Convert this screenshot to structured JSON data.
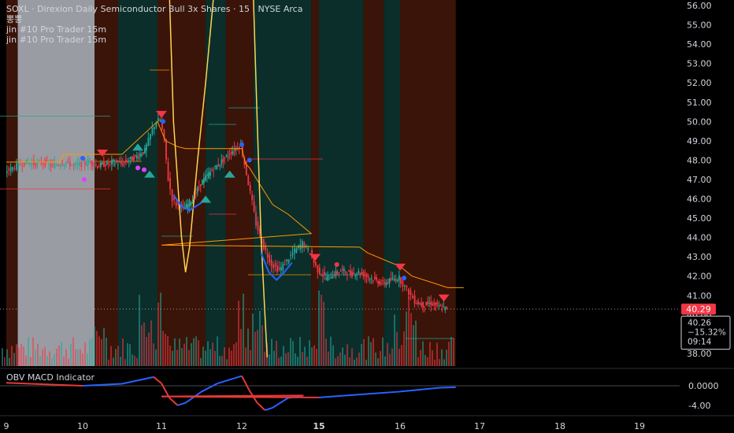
{
  "header": {
    "title": "SOXL · Direxion Daily Semiconductor Bull 3x Shares · 15 · NYSE Arca",
    "line2": "뽕뽕",
    "line3": "jin #10 Pro Trader 15m",
    "line4": "jin #10 Pro Trader 15m"
  },
  "indicator": {
    "title": "OBV MACD Indicator"
  },
  "price_tag": {
    "value": "40.29",
    "color": "#f23645"
  },
  "price_box": {
    "price": "40.26",
    "change": "−15.32%",
    "countdown": "09:14"
  },
  "colors": {
    "up": "#26a69a",
    "down": "#f23645",
    "orange": "#ff9800",
    "yellow": "#ffd54f",
    "signal_blue": "#2962ff",
    "signal_magenta": "#e040fb"
  },
  "chart_data": [
    {
      "type": "line",
      "subtype": "candlestick",
      "symbol": "SOXL",
      "interval": "15",
      "y_axis": {
        "ticks": [
          "56.00",
          "55.00",
          "54.00",
          "53.00",
          "52.00",
          "51.00",
          "50.00",
          "49.00",
          "48.00",
          "47.00",
          "46.00",
          "45.00",
          "44.00",
          "43.00",
          "42.00",
          "41.00",
          "40.00",
          "39.00",
          "38.00"
        ],
        "range": [
          37.6,
          56.2
        ]
      },
      "x_axis": {
        "ticks": [
          "9",
          "10",
          "11",
          "12",
          "15",
          "16",
          "17",
          "18",
          "19"
        ]
      },
      "close_path": [
        [
          9.0,
          47.4
        ],
        [
          9.1,
          47.6
        ],
        [
          9.2,
          47.8
        ],
        [
          9.3,
          47.9
        ],
        [
          9.4,
          47.8
        ],
        [
          9.5,
          47.9
        ],
        [
          9.6,
          47.7
        ],
        [
          9.7,
          47.8
        ],
        [
          9.8,
          47.9
        ],
        [
          9.9,
          47.7
        ],
        [
          10.0,
          47.8
        ],
        [
          10.1,
          47.9
        ],
        [
          10.2,
          47.7
        ],
        [
          10.3,
          47.8
        ],
        [
          10.4,
          47.9
        ],
        [
          10.5,
          47.8
        ],
        [
          10.6,
          48.0
        ],
        [
          10.7,
          48.2
        ],
        [
          10.8,
          48.5
        ],
        [
          10.85,
          49.0
        ],
        [
          10.9,
          49.6
        ],
        [
          10.95,
          50.0
        ],
        [
          11.0,
          50.1
        ],
        [
          11.05,
          49.0
        ],
        [
          11.1,
          47.0
        ],
        [
          11.15,
          46.0
        ],
        [
          11.2,
          45.7
        ],
        [
          11.3,
          45.5
        ],
        [
          11.4,
          46.0
        ],
        [
          11.5,
          46.8
        ],
        [
          11.6,
          47.3
        ],
        [
          11.7,
          47.7
        ],
        [
          11.8,
          48.1
        ],
        [
          11.9,
          48.5
        ],
        [
          12.0,
          48.8
        ],
        [
          12.05,
          47.8
        ],
        [
          12.1,
          46.8
        ],
        [
          12.15,
          45.8
        ],
        [
          12.2,
          44.7
        ],
        [
          12.3,
          43.5
        ],
        [
          12.4,
          42.6
        ],
        [
          12.5,
          42.3
        ],
        [
          12.6,
          42.8
        ],
        [
          12.7,
          43.3
        ],
        [
          12.8,
          43.7
        ],
        [
          12.9,
          43.2
        ],
        [
          12.95,
          42.7
        ],
        [
          15.0,
          42.3
        ],
        [
          15.1,
          41.9
        ],
        [
          15.2,
          42.1
        ],
        [
          15.3,
          42.3
        ],
        [
          15.4,
          42.1
        ],
        [
          15.5,
          42.2
        ],
        [
          15.6,
          42.0
        ],
        [
          15.7,
          41.8
        ],
        [
          15.8,
          41.6
        ],
        [
          15.9,
          41.8
        ],
        [
          16.0,
          41.9
        ],
        [
          16.05,
          41.6
        ],
        [
          16.1,
          41.3
        ],
        [
          16.15,
          41.0
        ],
        [
          16.2,
          40.7
        ],
        [
          16.3,
          40.5
        ],
        [
          16.4,
          40.6
        ],
        [
          16.5,
          40.4
        ],
        [
          16.6,
          40.3
        ]
      ],
      "orange_stop": [
        [
          9.0,
          47.9
        ],
        [
          9.7,
          47.9
        ],
        [
          9.75,
          48.3
        ],
        [
          10.5,
          48.3
        ],
        [
          10.95,
          50.0
        ],
        [
          11.05,
          49.0
        ],
        [
          11.2,
          48.7
        ],
        [
          11.3,
          48.6
        ],
        [
          12.0,
          48.6
        ],
        [
          12.05,
          47.8
        ],
        [
          12.1,
          47.6
        ],
        [
          12.4,
          45.7
        ],
        [
          12.6,
          45.2
        ],
        [
          12.9,
          44.2
        ],
        [
          13.0,
          43.6
        ],
        [
          15.5,
          43.5
        ],
        [
          15.6,
          43.2
        ],
        [
          16.0,
          42.5
        ],
        [
          16.15,
          42.0
        ],
        [
          16.6,
          41.4
        ],
        [
          16.8,
          41.4
        ]
      ],
      "yellow_osc": [
        [
          11.1,
          56.5
        ],
        [
          11.15,
          50.0
        ],
        [
          11.25,
          44.0
        ],
        [
          11.3,
          42.2
        ],
        [
          11.35,
          43.5
        ],
        [
          11.45,
          48.0
        ],
        [
          11.55,
          52.0
        ],
        [
          11.65,
          56.5
        ],
        [
          12.15,
          56.5
        ],
        [
          12.2,
          50.0
        ],
        [
          12.25,
          44.0
        ],
        [
          12.3,
          40.0
        ],
        [
          12.33,
          37.8
        ]
      ],
      "blue_curve": [
        [
          11.15,
          46.2
        ],
        [
          11.25,
          45.6
        ],
        [
          11.35,
          45.4
        ],
        [
          11.5,
          45.8
        ],
        [
          12.25,
          43.2
        ],
        [
          12.35,
          42.2
        ],
        [
          12.45,
          41.8
        ],
        [
          12.55,
          42.2
        ],
        [
          12.65,
          42.7
        ]
      ],
      "sell_signals": [
        [
          10.25,
          48.3
        ],
        [
          11.0,
          50.3
        ],
        [
          12.95,
          42.9
        ],
        [
          16.0,
          42.4
        ],
        [
          16.55,
          40.8
        ]
      ],
      "buy_signals": [
        [
          10.7,
          48.7
        ],
        [
          10.85,
          47.3
        ],
        [
          11.55,
          46.0
        ],
        [
          11.85,
          47.3
        ]
      ],
      "session_bands": [
        {
          "x": [
            9.0,
            9.15
          ],
          "kind": "down"
        },
        {
          "x": [
            9.15,
            10.15
          ],
          "kind": "grey"
        },
        {
          "x": [
            10.15,
            10.45
          ],
          "kind": "down"
        },
        {
          "x": [
            10.45,
            10.95
          ],
          "kind": "up"
        },
        {
          "x": [
            10.95,
            11.55
          ],
          "kind": "down"
        },
        {
          "x": [
            11.55,
            11.8
          ],
          "kind": "up"
        },
        {
          "x": [
            11.8,
            12.15
          ],
          "kind": "down"
        },
        {
          "x": [
            12.15,
            12.9
          ],
          "kind": "up"
        },
        {
          "x": [
            12.9,
            15.0
          ],
          "kind": "down"
        },
        {
          "x": [
            15.0,
            15.55
          ],
          "kind": "up"
        },
        {
          "x": [
            15.55,
            15.8
          ],
          "kind": "down"
        },
        {
          "x": [
            15.8,
            16.0
          ],
          "kind": "up"
        },
        {
          "x": [
            16.0,
            16.7
          ],
          "kind": "down"
        }
      ]
    },
    {
      "type": "line",
      "name": "OBV MACD Indicator",
      "y_axis": {
        "ticks": [
          "0.0000",
          "-4.00"
        ]
      },
      "series": [
        {
          "values": [
            [
              9.0,
              0.6
            ],
            [
              9.5,
              0.3
            ],
            [
              10.0,
              0.0
            ],
            [
              10.5,
              0.4
            ],
            [
              10.9,
              1.8
            ],
            [
              11.0,
              0.5
            ],
            [
              11.1,
              -2.5
            ],
            [
              11.2,
              -4.0
            ],
            [
              11.3,
              -3.5
            ],
            [
              11.5,
              -1.2
            ],
            [
              11.7,
              0.5
            ],
            [
              11.9,
              1.5
            ],
            [
              12.0,
              2.0
            ],
            [
              12.1,
              -1.0
            ],
            [
              12.2,
              -3.5
            ],
            [
              12.3,
              -5.0
            ],
            [
              12.4,
              -4.5
            ],
            [
              12.6,
              -2.5
            ],
            [
              12.8,
              -2.0
            ],
            [
              13.0,
              -2.2
            ],
            [
              15.0,
              -2.4
            ],
            [
              15.5,
              -1.8
            ],
            [
              16.0,
              -1.2
            ],
            [
              16.5,
              -0.4
            ],
            [
              16.7,
              -0.3
            ]
          ]
        }
      ]
    }
  ]
}
